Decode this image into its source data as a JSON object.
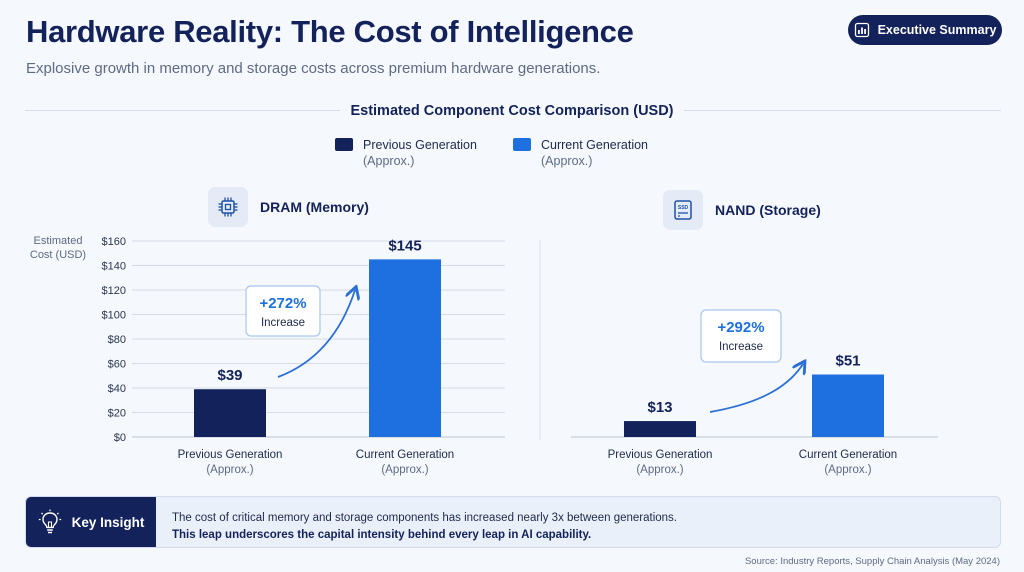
{
  "header": {
    "title": "Hardware Reality: The Cost of Intelligence",
    "subtitle": "Explosive growth in memory and storage costs across premium hardware generations.",
    "badge_label": "Executive Summary"
  },
  "chart_heading": "Estimated Component Cost Comparison (USD)",
  "legend": [
    {
      "label": "Previous Generation",
      "sub": "(Approx.)",
      "color": "#13225a"
    },
    {
      "label": "Current Generation",
      "sub": "(Approx.)",
      "color": "#1e6fe0"
    }
  ],
  "colors": {
    "navy": "#13225a",
    "blue": "#1e6fe0",
    "grid": "#d5dce8",
    "arrow": "#2b6fd6"
  },
  "y_axis": {
    "label_line1": "Estimated",
    "label_line2": "Cost (USD)"
  },
  "panels": [
    {
      "title": "DRAM (Memory)",
      "icon": "chip-icon"
    },
    {
      "title": "NAND (Storage)",
      "icon": "ssd-icon",
      "icon_text": "SSD"
    }
  ],
  "chart_data": [
    {
      "type": "bar",
      "title": "DRAM (Memory)",
      "categories": [
        "Previous Generation",
        "Current Generation"
      ],
      "category_sub": [
        "(Approx.)",
        "(Approx.)"
      ],
      "values": [
        39,
        145
      ],
      "value_labels": [
        "$39",
        "$145"
      ],
      "ylabel": "Estimated Cost (USD)",
      "ylim": [
        0,
        160
      ],
      "yticks": [
        0,
        20,
        40,
        60,
        80,
        100,
        120,
        140,
        160
      ],
      "ytick_labels": [
        "$0",
        "$20",
        "$40",
        "$60",
        "$80",
        "$100",
        "$120",
        "$140",
        "$160"
      ],
      "grid": true,
      "annotation": {
        "value": "+272%",
        "label": "Increase"
      }
    },
    {
      "type": "bar",
      "title": "NAND (Storage)",
      "categories": [
        "Previous Generation",
        "Current Generation"
      ],
      "category_sub": [
        "(Approx.)",
        "(Approx.)"
      ],
      "values": [
        13,
        51
      ],
      "value_labels": [
        "$13",
        "$51"
      ],
      "ylim": [
        0,
        160
      ],
      "grid": false,
      "annotation": {
        "value": "+292%",
        "label": "Increase"
      }
    }
  ],
  "insight": {
    "label": "Key Insight",
    "line1": "The cost of critical memory and storage components has increased nearly 3x between generations.",
    "line2": "This leap underscores the capital intensity behind every leap in AI capability."
  },
  "source": "Source: Industry Reports, Supply Chain Analysis (May 2024)"
}
